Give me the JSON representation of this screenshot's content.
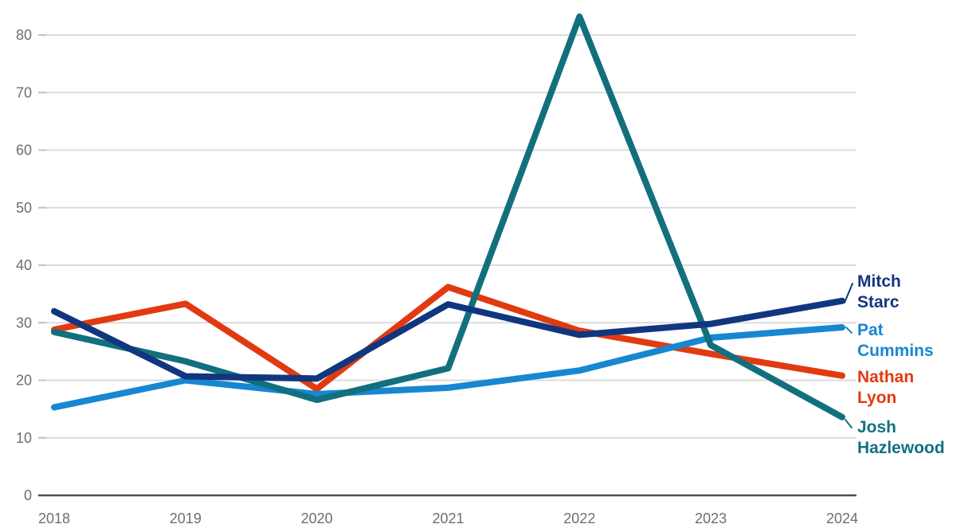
{
  "chart_data": {
    "type": "line",
    "title": "",
    "xlabel": "",
    "ylabel": "",
    "x": [
      "2018",
      "2019",
      "2020",
      "2021",
      "2022",
      "2023",
      "2024"
    ],
    "series": [
      {
        "name": "Mitch Starc",
        "label_lines": [
          "Mitch",
          "Starc"
        ],
        "color": "#113680",
        "values": [
          32.0,
          20.7,
          20.3,
          33.2,
          27.9,
          29.8,
          33.8
        ]
      },
      {
        "name": "Pat Cummins",
        "label_lines": [
          "Pat",
          "Cummins"
        ],
        "color": "#1787d2",
        "values": [
          15.3,
          20.0,
          17.6,
          18.7,
          21.7,
          27.4,
          29.2
        ]
      },
      {
        "name": "Nathan Lyon",
        "label_lines": [
          "Nathan",
          "Lyon"
        ],
        "color": "#e23a10",
        "values": [
          28.8,
          33.3,
          18.5,
          36.2,
          28.6,
          24.6,
          20.8
        ]
      },
      {
        "name": "Josh Hazlewood",
        "label_lines": [
          "Josh",
          "Hazlewood"
        ],
        "color": "#12707e",
        "values": [
          28.4,
          23.3,
          16.6,
          22.1,
          83.2,
          26.1,
          13.6
        ]
      }
    ],
    "y_ticks": [
      "0",
      "10",
      "20",
      "30",
      "40",
      "50",
      "60",
      "70",
      "80"
    ],
    "ylim": [
      0,
      80
    ],
    "grid": true,
    "legend_position": "right-labels",
    "colors": {
      "axis": "#4f4f4f",
      "gridline": "#dcdcdc",
      "grid_tick": "#c4c4c4",
      "tick_label": "#6e6e6e"
    }
  }
}
